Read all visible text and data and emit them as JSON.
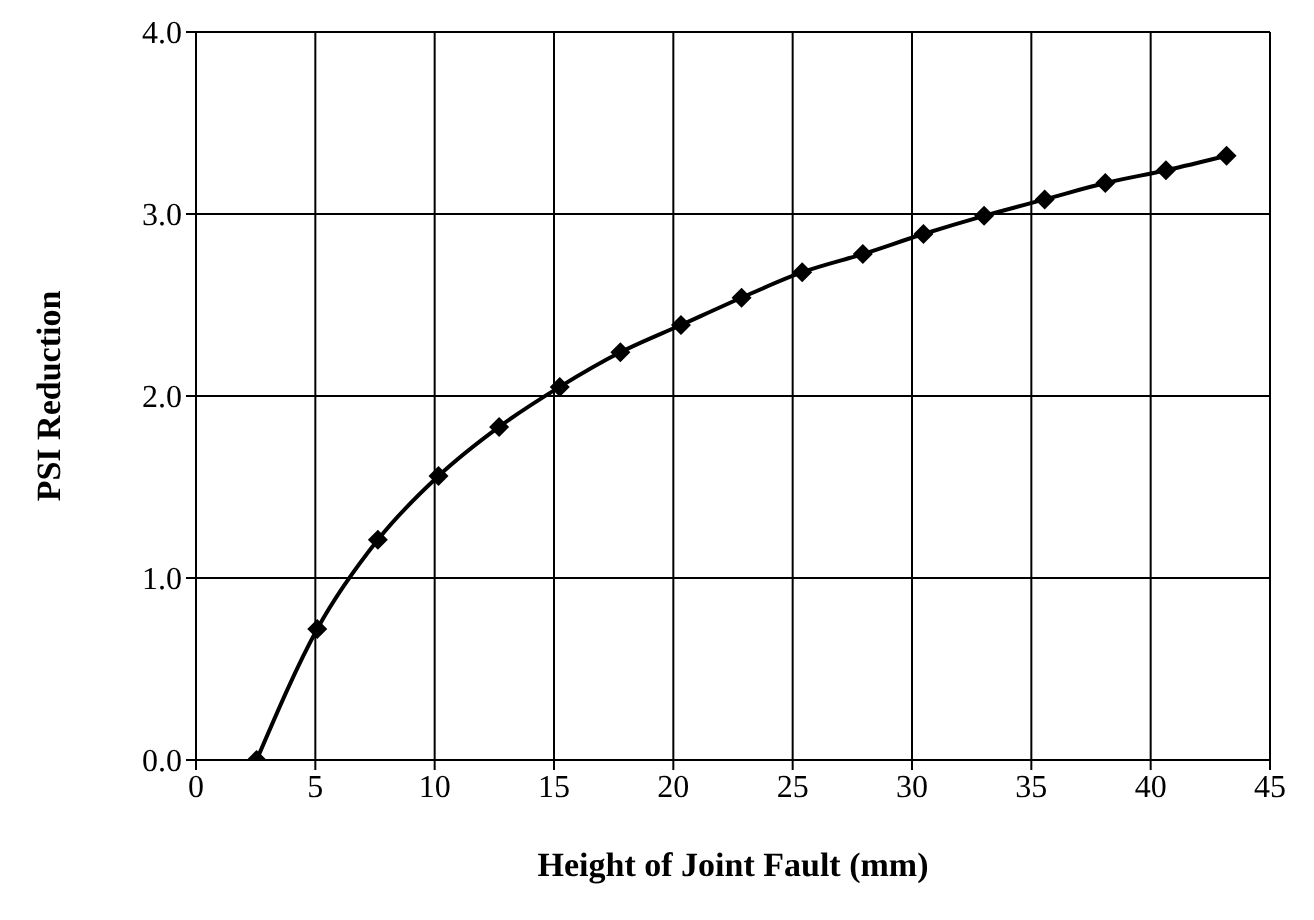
{
  "chart_data": {
    "type": "line",
    "xlabel": "Height of Joint Fault (mm)",
    "ylabel": "PSI Reduction",
    "x": [
      2.54,
      5.08,
      7.62,
      10.16,
      12.7,
      15.24,
      17.78,
      20.32,
      22.86,
      25.4,
      27.94,
      30.48,
      33.02,
      35.56,
      38.1,
      40.64,
      43.18
    ],
    "series": [
      {
        "color": "#000000",
        "values": [
          0,
          0.72,
          1.21,
          1.56,
          1.83,
          2.05,
          2.24,
          2.39,
          2.54,
          2.68,
          2.78,
          2.89,
          2.99,
          3.08,
          3.17,
          3.24,
          3.32
        ]
      }
    ],
    "xlim": [
      0,
      45
    ],
    "xticks": [
      0,
      5,
      10,
      15,
      20,
      25,
      30,
      35,
      40,
      45
    ],
    "ylim": [
      0,
      4
    ],
    "yticks": [
      {
        "value": 0,
        "label": "0.0"
      },
      {
        "value": 1,
        "label": "1.0"
      },
      {
        "value": 2,
        "label": "2.0"
      },
      {
        "value": 3,
        "label": "3.0"
      },
      {
        "value": 4,
        "label": "4.0"
      }
    ],
    "grid": true,
    "marker": "diamond",
    "line_style": "solid",
    "legend": false
  }
}
